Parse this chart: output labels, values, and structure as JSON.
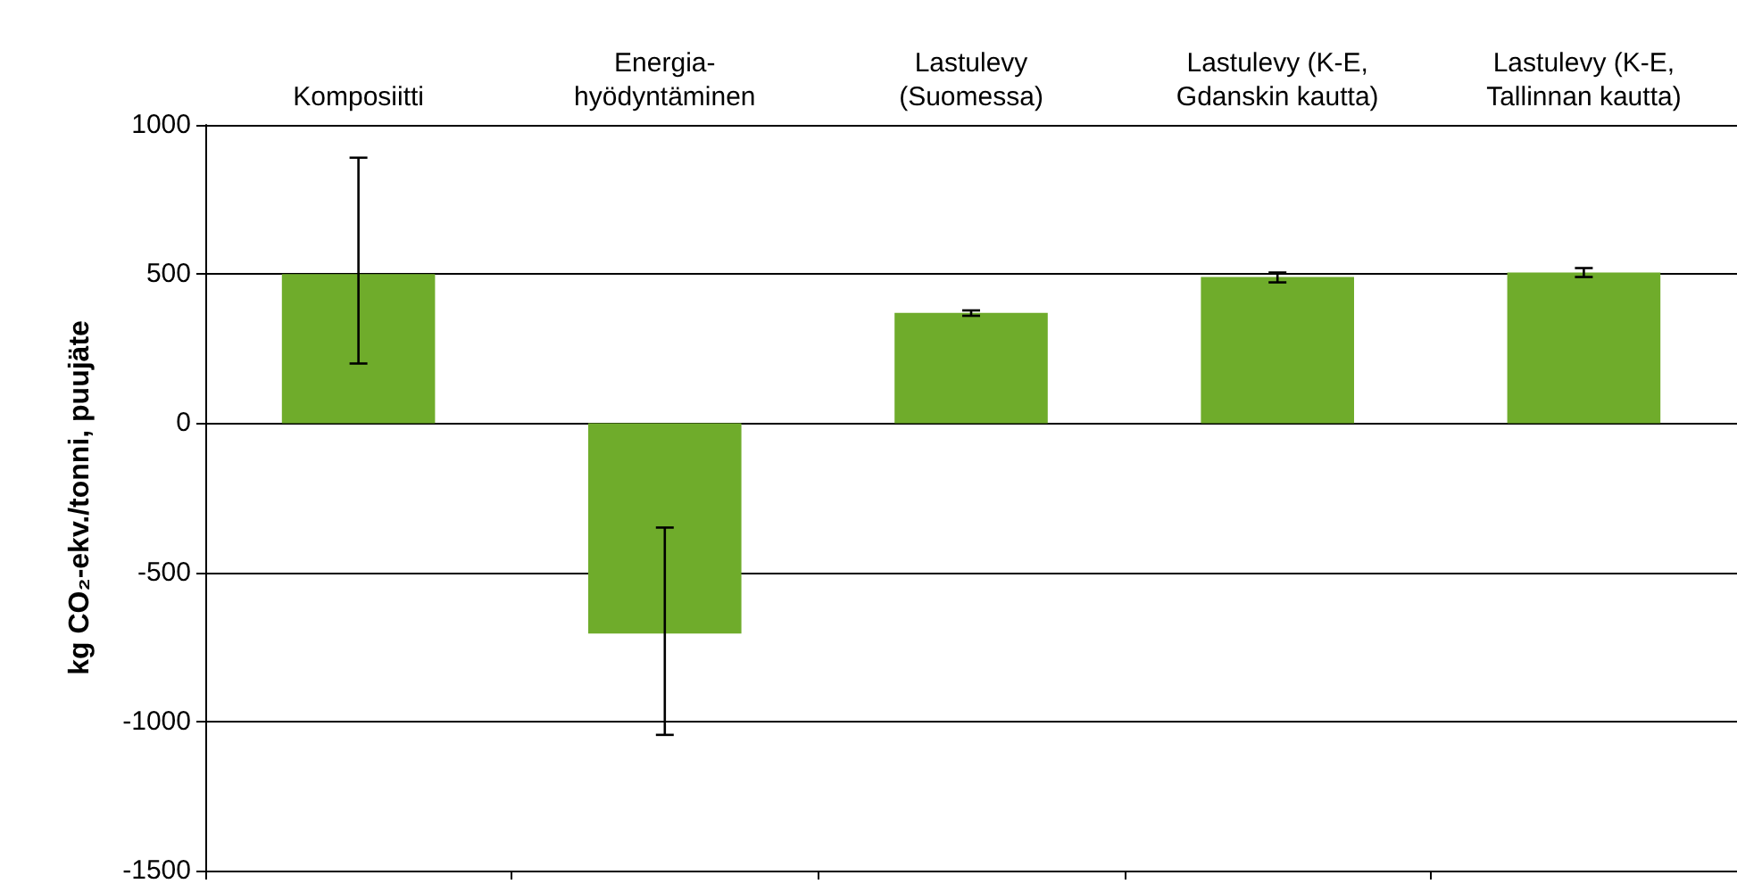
{
  "chart_data": {
    "type": "bar",
    "categories": [
      "Komposiitti",
      "Energia-\nhyödyntäminen",
      "Lastulevy\n(Suomessa)",
      "Lastulevy (K-E,\nGdanskin kautta)",
      "Lastulevy (K-E,\nTallinnan kautta)"
    ],
    "values": [
      500,
      -705,
      370,
      490,
      505
    ],
    "errors": [
      [
        200,
        890
      ],
      [
        -1045,
        -350
      ],
      [
        360,
        378
      ],
      [
        472,
        505
      ],
      [
        490,
        520
      ]
    ],
    "color": "#6fac2b",
    "ylabel": "kg CO₂-ekv./tonni, puujäte",
    "ylim": [
      -1500,
      1000
    ],
    "yticks": [
      -1500,
      -1000,
      -500,
      0,
      500,
      1000
    ],
    "grid": "y"
  }
}
